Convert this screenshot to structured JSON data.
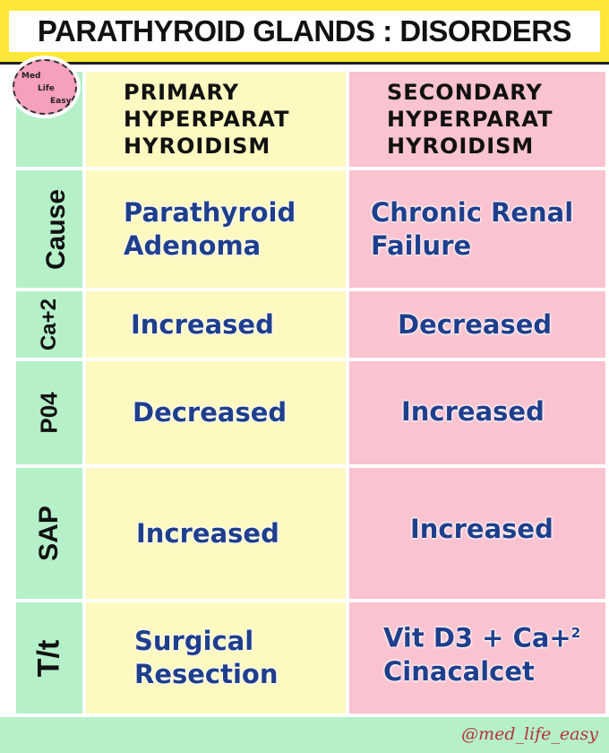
{
  "title": "PARATHYROID GLANDS : DISORDERS",
  "logo": {
    "text": [
      "Med",
      "Life",
      "Easy"
    ]
  },
  "columns": {
    "primary": [
      "PRIMARY",
      "HYPERPARAT",
      "HYROIDISM"
    ],
    "secondary": [
      "SECONDARY",
      "HYPERPARAT",
      "HYROIDISM"
    ]
  },
  "rows": [
    {
      "label": "Cause",
      "primary": [
        "Parathyroid",
        "Adenoma"
      ],
      "secondary": [
        "Chronic Renal",
        "Failure"
      ]
    },
    {
      "label": "Ca+2",
      "primary": [
        "Increased"
      ],
      "secondary": [
        "Decreased"
      ]
    },
    {
      "label": "P04",
      "primary": [
        "Decreased"
      ],
      "secondary": [
        "Increased"
      ]
    },
    {
      "label": "SAP",
      "primary": [
        "Increased"
      ],
      "secondary": [
        "Increased"
      ]
    },
    {
      "label": "T/t",
      "primary": [
        "Surgical",
        "Resection"
      ],
      "secondary": [
        "Vit D3 + Ca+",
        "Cinacalcet"
      ],
      "secondary_sup": "2"
    }
  ],
  "footer": {
    "handle": "@med_life_easy"
  },
  "colors": {
    "header": "#fde83a",
    "label_col": "#b5f0c9",
    "primary_col": "#fdf9c0",
    "secondary_col": "#f9c3d0",
    "value_text": "#1f3f8c"
  }
}
